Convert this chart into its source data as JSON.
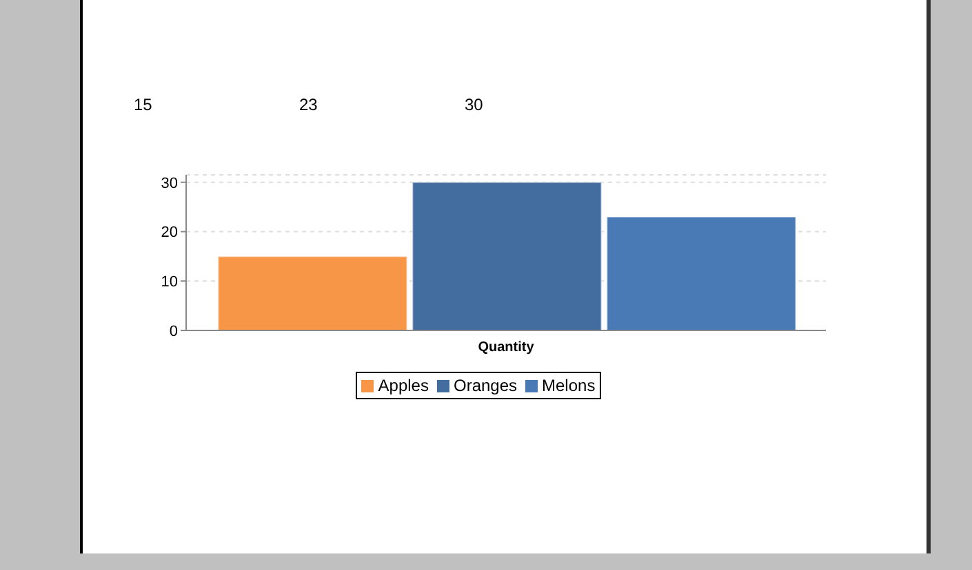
{
  "chart_data": {
    "type": "bar",
    "categories": [
      "Quantity"
    ],
    "series": [
      {
        "name": "Apples",
        "color": "#f79646",
        "values": [
          15
        ]
      },
      {
        "name": "Oranges",
        "color": "#436c9f",
        "values": [
          30
        ]
      },
      {
        "name": "Melons",
        "color": "#4a7ab5",
        "values": [
          23
        ]
      }
    ],
    "ylim": [
      0,
      31.5
    ],
    "yticks": [
      0,
      10,
      20,
      30
    ],
    "grid": "y",
    "legend": "bottom",
    "annotations": [
      "15",
      "23",
      "30"
    ]
  }
}
